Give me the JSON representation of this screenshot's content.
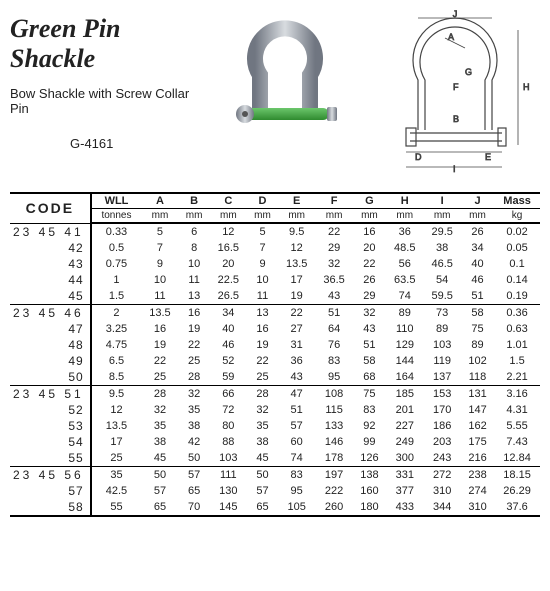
{
  "title": "Green Pin Shackle",
  "subtitle": "Bow Shackle with Screw Collar Pin",
  "model": "G-4161",
  "columns": [
    {
      "label": "WLL",
      "unit": "tonnes"
    },
    {
      "label": "A",
      "unit": "mm"
    },
    {
      "label": "B",
      "unit": "mm"
    },
    {
      "label": "C",
      "unit": "mm"
    },
    {
      "label": "D",
      "unit": "mm"
    },
    {
      "label": "E",
      "unit": "mm"
    },
    {
      "label": "F",
      "unit": "mm"
    },
    {
      "label": "G",
      "unit": "mm"
    },
    {
      "label": "H",
      "unit": "mm"
    },
    {
      "label": "I",
      "unit": "mm"
    },
    {
      "label": "J",
      "unit": "mm"
    },
    {
      "label": "Mass",
      "unit": "kg"
    }
  ],
  "rows": [
    {
      "code": "23 45 41",
      "prefix": true,
      "v": [
        "0.33",
        "5",
        "6",
        "12",
        "5",
        "9.5",
        "22",
        "16",
        "36",
        "29.5",
        "26",
        "0.02"
      ]
    },
    {
      "code": "42",
      "v": [
        "0.5",
        "7",
        "8",
        "16.5",
        "7",
        "12",
        "29",
        "20",
        "48.5",
        "38",
        "34",
        "0.05"
      ]
    },
    {
      "code": "43",
      "v": [
        "0.75",
        "9",
        "10",
        "20",
        "9",
        "13.5",
        "32",
        "22",
        "56",
        "46.5",
        "40",
        "0.1"
      ]
    },
    {
      "code": "44",
      "v": [
        "1",
        "10",
        "11",
        "22.5",
        "10",
        "17",
        "36.5",
        "26",
        "63.5",
        "54",
        "46",
        "0.14"
      ]
    },
    {
      "code": "45",
      "v": [
        "1.5",
        "11",
        "13",
        "26.5",
        "11",
        "19",
        "43",
        "29",
        "74",
        "59.5",
        "51",
        "0.19"
      ]
    },
    {
      "code": "23 45 46",
      "prefix": true,
      "group": true,
      "v": [
        "2",
        "13.5",
        "16",
        "34",
        "13",
        "22",
        "51",
        "32",
        "89",
        "73",
        "58",
        "0.36"
      ]
    },
    {
      "code": "47",
      "v": [
        "3.25",
        "16",
        "19",
        "40",
        "16",
        "27",
        "64",
        "43",
        "110",
        "89",
        "75",
        "0.63"
      ]
    },
    {
      "code": "48",
      "v": [
        "4.75",
        "19",
        "22",
        "46",
        "19",
        "31",
        "76",
        "51",
        "129",
        "103",
        "89",
        "1.01"
      ]
    },
    {
      "code": "49",
      "v": [
        "6.5",
        "22",
        "25",
        "52",
        "22",
        "36",
        "83",
        "58",
        "144",
        "119",
        "102",
        "1.5"
      ]
    },
    {
      "code": "50",
      "v": [
        "8.5",
        "25",
        "28",
        "59",
        "25",
        "43",
        "95",
        "68",
        "164",
        "137",
        "118",
        "2.21"
      ]
    },
    {
      "code": "23 45 51",
      "prefix": true,
      "group": true,
      "v": [
        "9.5",
        "28",
        "32",
        "66",
        "28",
        "47",
        "108",
        "75",
        "185",
        "153",
        "131",
        "3.16"
      ]
    },
    {
      "code": "52",
      "v": [
        "12",
        "32",
        "35",
        "72",
        "32",
        "51",
        "115",
        "83",
        "201",
        "170",
        "147",
        "4.31"
      ]
    },
    {
      "code": "53",
      "v": [
        "13.5",
        "35",
        "38",
        "80",
        "35",
        "57",
        "133",
        "92",
        "227",
        "186",
        "162",
        "5.55"
      ]
    },
    {
      "code": "54",
      "v": [
        "17",
        "38",
        "42",
        "88",
        "38",
        "60",
        "146",
        "99",
        "249",
        "203",
        "175",
        "7.43"
      ]
    },
    {
      "code": "55",
      "v": [
        "25",
        "45",
        "50",
        "103",
        "45",
        "74",
        "178",
        "126",
        "300",
        "243",
        "216",
        "12.84"
      ]
    },
    {
      "code": "23 45 56",
      "prefix": true,
      "group": true,
      "v": [
        "35",
        "50",
        "57",
        "111",
        "50",
        "83",
        "197",
        "138",
        "331",
        "272",
        "238",
        "18.15"
      ]
    },
    {
      "code": "57",
      "v": [
        "42.5",
        "57",
        "65",
        "130",
        "57",
        "95",
        "222",
        "160",
        "377",
        "310",
        "274",
        "26.29"
      ]
    },
    {
      "code": "58",
      "last": true,
      "v": [
        "55",
        "65",
        "70",
        "145",
        "65",
        "105",
        "260",
        "180",
        "433",
        "344",
        "310",
        "37.6"
      ]
    }
  ],
  "code_header": "CODE",
  "colors": {
    "bow": "#9aa0a8",
    "pin": "#3a9e3a",
    "line": "#444"
  }
}
